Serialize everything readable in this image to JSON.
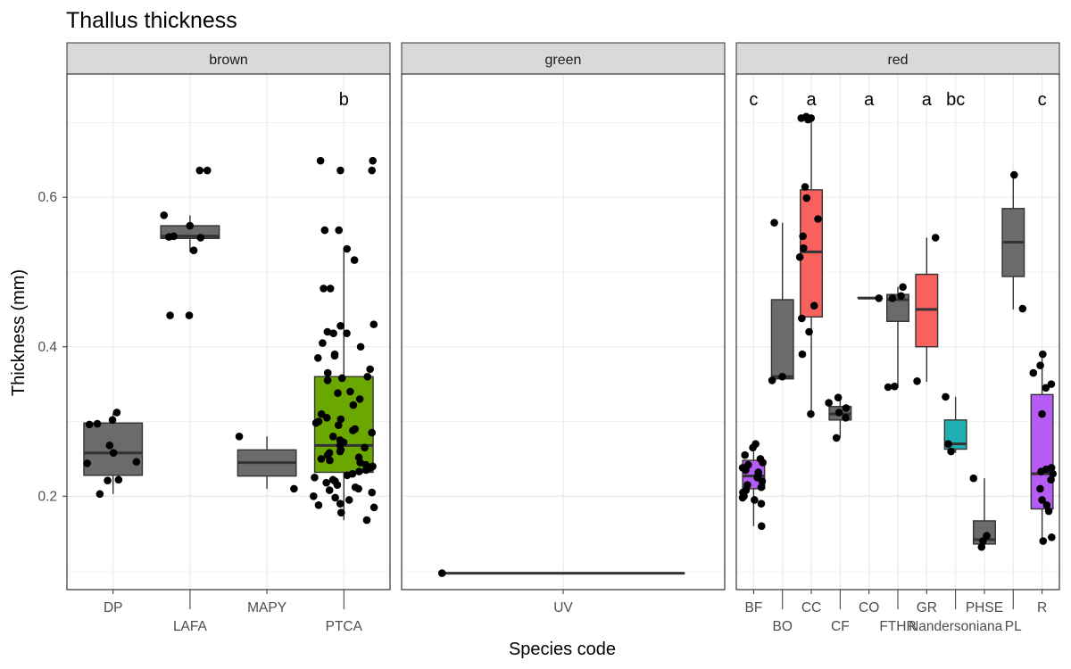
{
  "chart_data": {
    "type": "box",
    "title": "Thallus thickness",
    "xlabel": "Species code",
    "ylabel": "Thickness (mm)",
    "ylim": [
      0.075,
      0.765
    ],
    "yticks": [
      0.2,
      0.4,
      0.6
    ],
    "grid": true,
    "colors": {
      "grey": "#6b6b6b",
      "green": "#6aa800",
      "red": "#f8615e",
      "teal": "#1fb1b2",
      "purple": "#b55cf4",
      "strip": "#d9d9d9",
      "grid": "#ebebeb",
      "point": "#000000"
    },
    "panels": [
      {
        "name": "brown",
        "categories": [
          "DP",
          "LAFA",
          "MAPY",
          "PTCA"
        ],
        "boxes": [
          {
            "cat": "DP",
            "q1": 0.228,
            "median": 0.258,
            "q3": 0.298,
            "whisker_low": 0.203,
            "whisker_high": 0.311,
            "fill": "grey",
            "points": [
              0.302,
              0.312,
              0.296,
              0.297,
              0.268,
              0.258,
              0.244,
              0.246,
              0.222,
              0.221,
              0.203
            ]
          },
          {
            "cat": "LAFA",
            "q1": 0.545,
            "median": 0.548,
            "q3": 0.562,
            "whisker_low": 0.527,
            "whisker_high": 0.576,
            "fill": "grey",
            "points": [
              0.636,
              0.636,
              0.576,
              0.562,
              0.548,
              0.546,
              0.547,
              0.529,
              0.442,
              0.442
            ]
          },
          {
            "cat": "MAPY",
            "q1": 0.227,
            "median": 0.245,
            "q3": 0.262,
            "whisker_low": 0.21,
            "whisker_high": 0.28,
            "fill": "grey",
            "points": [
              0.28,
              0.21
            ]
          },
          {
            "cat": "PTCA",
            "q1": 0.232,
            "median": 0.268,
            "q3": 0.36,
            "whisker_low": 0.168,
            "whisker_high": 0.532,
            "fill": "green",
            "letter": "b",
            "points": [
              0.649,
              0.649,
              0.636,
              0.636,
              0.556,
              0.556,
              0.531,
              0.516,
              0.478,
              0.478,
              0.43,
              0.428,
              0.42,
              0.418,
              0.418,
              0.405,
              0.4,
              0.39,
              0.388,
              0.385,
              0.37,
              0.365,
              0.36,
              0.358,
              0.355,
              0.34,
              0.338,
              0.33,
              0.322,
              0.31,
              0.305,
              0.303,
              0.3,
              0.298,
              0.295,
              0.29,
              0.288,
              0.285,
              0.28,
              0.275,
              0.272,
              0.268,
              0.265,
              0.262,
              0.26,
              0.258,
              0.255,
              0.252,
              0.25,
              0.248,
              0.245,
              0.242,
              0.24,
              0.238,
              0.235,
              0.233,
              0.23,
              0.228,
              0.225,
              0.222,
              0.22,
              0.218,
              0.215,
              0.212,
              0.21,
              0.208,
              0.205,
              0.2,
              0.198,
              0.195,
              0.19,
              0.188,
              0.185,
              0.178,
              0.168
            ]
          }
        ]
      },
      {
        "name": "green",
        "categories": [
          "UV"
        ],
        "boxes": [
          {
            "cat": "UV",
            "q1": 0.097,
            "median": 0.097,
            "q3": 0.097,
            "whisker_low": 0.097,
            "whisker_high": 0.097,
            "fill": "grey",
            "points": [
              0.097
            ]
          }
        ]
      },
      {
        "name": "red",
        "categories": [
          "BF",
          "BO",
          "CC",
          "CF",
          "CO",
          "FTHR",
          "GR",
          "Nandersoniana",
          "PHSE",
          "PL",
          "R"
        ],
        "boxes": [
          {
            "cat": "BF",
            "q1": 0.21,
            "median": 0.227,
            "q3": 0.248,
            "whisker_low": 0.16,
            "whisker_high": 0.268,
            "fill": "purple",
            "letter": "c",
            "points": [
              0.27,
              0.265,
              0.255,
              0.25,
              0.245,
              0.242,
              0.238,
              0.235,
              0.232,
              0.228,
              0.225,
              0.22,
              0.215,
              0.212,
              0.208,
              0.205,
              0.2,
              0.198,
              0.195,
              0.19,
              0.16
            ]
          },
          {
            "cat": "BO",
            "q1": 0.357,
            "median": 0.36,
            "q3": 0.463,
            "whisker_low": 0.355,
            "whisker_high": 0.566,
            "fill": "grey",
            "points": [
              0.566,
              0.36,
              0.355
            ]
          },
          {
            "cat": "CC",
            "q1": 0.44,
            "median": 0.527,
            "q3": 0.61,
            "whisker_low": 0.31,
            "whisker_high": 0.708,
            "fill": "red",
            "letter": "a",
            "points": [
              0.708,
              0.706,
              0.706,
              0.704,
              0.614,
              0.599,
              0.571,
              0.548,
              0.532,
              0.52,
              0.455,
              0.438,
              0.42,
              0.39,
              0.31
            ]
          },
          {
            "cat": "CF",
            "q1": 0.302,
            "median": 0.31,
            "q3": 0.32,
            "whisker_low": 0.278,
            "whisker_high": 0.332,
            "fill": "grey",
            "points": [
              0.332,
              0.325,
              0.318,
              0.312,
              0.305,
              0.278
            ]
          },
          {
            "cat": "CO",
            "q1": 0.465,
            "median": 0.465,
            "q3": 0.466,
            "whisker_low": 0.465,
            "whisker_high": 0.466,
            "fill": "grey",
            "letter": "a",
            "points": [
              0.465
            ]
          },
          {
            "cat": "FTHR",
            "q1": 0.434,
            "median": 0.463,
            "q3": 0.47,
            "whisker_low": 0.345,
            "whisker_high": 0.48,
            "fill": "grey",
            "points": [
              0.48,
              0.468,
              0.465,
              0.347,
              0.346
            ]
          },
          {
            "cat": "GR",
            "q1": 0.4,
            "median": 0.45,
            "q3": 0.497,
            "whisker_low": 0.353,
            "whisker_high": 0.546,
            "fill": "red",
            "letter": "a",
            "points": [
              0.546,
              0.354
            ]
          },
          {
            "cat": "Nandersoniana",
            "q1": 0.263,
            "median": 0.27,
            "q3": 0.302,
            "whisker_low": 0.258,
            "whisker_high": 0.333,
            "fill": "teal",
            "letter": "bc",
            "points": [
              0.333,
              0.27,
              0.26
            ]
          },
          {
            "cat": "PHSE",
            "q1": 0.136,
            "median": 0.142,
            "q3": 0.167,
            "whisker_low": 0.13,
            "whisker_high": 0.224,
            "fill": "grey",
            "points": [
              0.224,
              0.147,
              0.14,
              0.132
            ]
          },
          {
            "cat": "PL",
            "q1": 0.494,
            "median": 0.54,
            "q3": 0.585,
            "whisker_low": 0.45,
            "whisker_high": 0.63,
            "fill": "grey",
            "points": [
              0.63,
              0.451
            ]
          },
          {
            "cat": "R",
            "q1": 0.183,
            "median": 0.23,
            "q3": 0.336,
            "whisker_low": 0.14,
            "whisker_high": 0.39,
            "fill": "purple",
            "letter": "c",
            "points": [
              0.39,
              0.375,
              0.365,
              0.35,
              0.345,
              0.31,
              0.238,
              0.236,
              0.233,
              0.23,
              0.222,
              0.21,
              0.195,
              0.188,
              0.18,
              0.145,
              0.14
            ]
          }
        ]
      }
    ]
  }
}
